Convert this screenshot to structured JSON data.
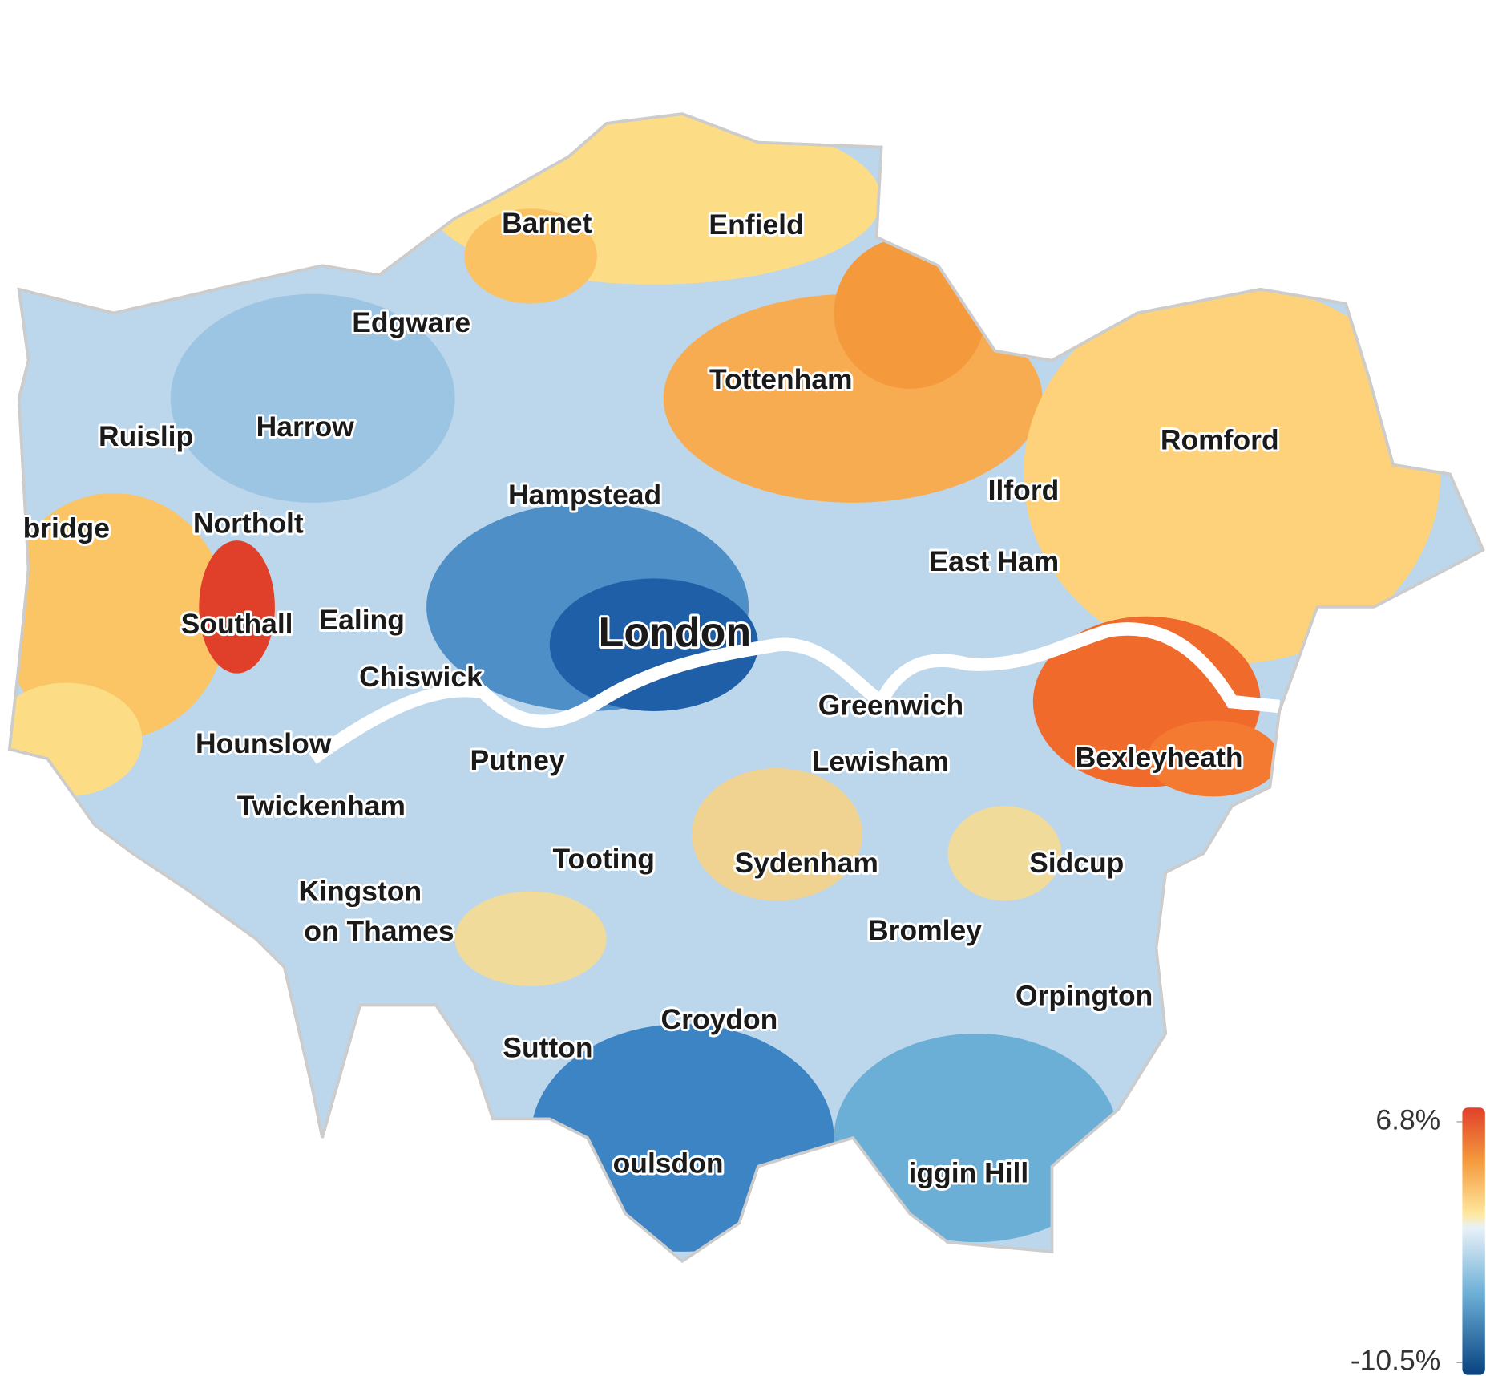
{
  "map": {
    "center_label": "London",
    "places": [
      "Barnet",
      "Enfield",
      "Edgware",
      "Tottenham",
      "Ruislip",
      "Harrow",
      "Romford",
      "Hampstead",
      "Ilford",
      "bridge",
      "Northolt",
      "East Ham",
      "Southall",
      "Ealing",
      "Chiswick",
      "Greenwich",
      "Hounslow",
      "Putney",
      "Lewisham",
      "Bexleyheath",
      "Twickenham",
      "Tooting",
      "Sydenham",
      "Sidcup",
      "Kingston",
      "on Thames",
      "Bromley",
      "Orpington",
      "Croydon",
      "Sutton",
      "oulsdon",
      "iggin Hill"
    ]
  },
  "legend": {
    "range": [
      -10.5,
      6.8
    ],
    "ticks": [
      {
        "value": 6.8,
        "label": "6.8%"
      },
      {
        "value": -10.5,
        "label": "-10.5%"
      }
    ]
  }
}
